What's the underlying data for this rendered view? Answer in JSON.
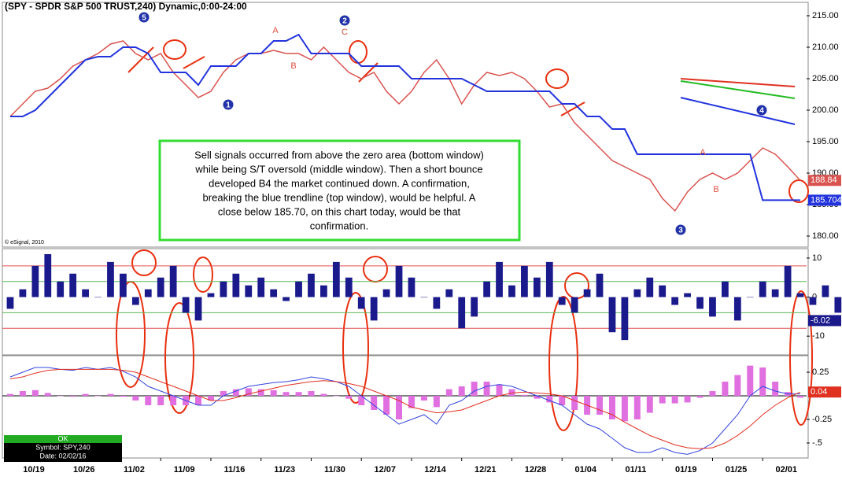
{
  "title": "(SPY - SPDR S&P 500 TRUST,240) Dynamic,0:00-24:00",
  "copyright": "© eSignal, 2010",
  "annotation": [
    "Sell signals occurred from above the zero area (bottom window)",
    "while being S/T oversold (middle window).  Then a short bounce",
    "developed B4 the market continued down.  A confirmation,",
    "breaking the blue trendline (top window), would be helpful. A",
    "close below 185.70, on this chart today, would be that",
    "confirmation."
  ],
  "status": {
    "state": "OK",
    "symbol": "Symbol: SPY,240",
    "date": "Date: 02/02/16"
  },
  "wave_labels": [
    "5",
    "1",
    "2",
    "4",
    "3",
    "A",
    "C",
    "B",
    "A",
    "B"
  ],
  "chart_data": [
    {
      "type": "line",
      "ylim": [
        178.5,
        216.5
      ],
      "yticks": [
        {
          "value": 215,
          "label": "215.00"
        },
        {
          "value": 210,
          "label": "210.00"
        },
        {
          "value": 205,
          "label": "205.00"
        },
        {
          "value": 200,
          "label": "200.00"
        },
        {
          "value": 195,
          "label": "195.00"
        },
        {
          "value": 190,
          "label": "190.00"
        },
        {
          "value": 185,
          "label": "185.00"
        },
        {
          "value": 180,
          "label": "180.00"
        }
      ],
      "series": [
        {
          "color": "#d9534f",
          "values": [
            199,
            201,
            203,
            203.5,
            205,
            207,
            208,
            209,
            210.5,
            211,
            209,
            208,
            209,
            206,
            204,
            202,
            203,
            206,
            208,
            209,
            209,
            209.5,
            209,
            209,
            208,
            210,
            208,
            206,
            205,
            206,
            203,
            201,
            203,
            206,
            208,
            205,
            201,
            204,
            206,
            205.5,
            206,
            205,
            203,
            200.5,
            201,
            198,
            196,
            194,
            192,
            191,
            190,
            189,
            186,
            184,
            187,
            189,
            190,
            189,
            190,
            192,
            194,
            193,
            191,
            188.84
          ]
        },
        {
          "color": "#2233dd",
          "values": [
            199,
            199,
            200,
            202,
            204,
            206,
            208,
            208.5,
            208.5,
            210,
            210,
            209,
            206,
            206,
            206,
            204,
            207,
            207,
            207,
            209,
            209,
            211,
            211,
            212,
            209,
            209,
            209,
            209,
            207,
            207,
            207,
            207,
            205,
            205,
            205,
            205,
            205,
            204,
            203,
            203,
            203,
            203,
            203,
            203,
            201,
            201,
            199,
            199,
            197,
            197,
            193,
            193,
            193,
            193,
            193,
            193,
            193,
            193,
            193,
            193,
            185.704,
            185.704,
            185.704,
            185.704
          ]
        }
      ]
    },
    {
      "type": "bar",
      "ylim": [
        -14.6,
        12
      ],
      "yticks": [
        10,
        0,
        -10
      ],
      "color": "#1a1a8c",
      "levels": [
        {
          "value": 8,
          "color": "#e05050"
        },
        {
          "value": 4,
          "color": "#5cb85c"
        },
        {
          "value": -4,
          "color": "#5cb85c"
        },
        {
          "value": -8,
          "color": "#e05050"
        }
      ],
      "values": [
        -3,
        2,
        8,
        11,
        4,
        6,
        2,
        0,
        9,
        6,
        -2,
        2,
        5,
        8,
        -4,
        -6,
        1,
        4,
        6,
        3,
        5,
        2,
        -1,
        4,
        6,
        3,
        9,
        5,
        -3,
        -6,
        2,
        8,
        5,
        0,
        -3,
        2,
        -8,
        -5,
        4,
        9,
        3,
        8,
        5,
        9,
        -2,
        -4,
        2,
        6,
        -9,
        -11,
        2,
        5,
        3,
        -2,
        1,
        -3,
        -5,
        4,
        -6,
        0,
        4,
        2,
        8,
        1,
        -2,
        3,
        -4,
        -6.02
      ]
    },
    {
      "type": "combo",
      "ylim": [
        -0.642,
        0.417
      ],
      "yticks": [
        0.25,
        -0.25,
        {
          "value": -0.5,
          "label": "-.5"
        }
      ],
      "categories": [
        "10/19",
        null,
        null,
        null,
        "10/26",
        null,
        null,
        null,
        "11/02",
        null,
        null,
        null,
        "11/09",
        null,
        null,
        null,
        "11/16",
        null,
        null,
        null,
        "11/23",
        null,
        null,
        null,
        "11/30",
        null,
        null,
        null,
        "12/07",
        null,
        null,
        null,
        "12/14",
        null,
        null,
        null,
        "12/21",
        null,
        null,
        null,
        "12/28",
        null,
        null,
        null,
        "01/04",
        null,
        null,
        null,
        "01/11",
        null,
        null,
        null,
        "01/19",
        null,
        null,
        null,
        "01/25",
        null,
        null,
        null,
        "02/01",
        null,
        null,
        null
      ],
      "series": [
        {
          "type": "bar",
          "color": "#e070e0",
          "values": [
            0.02,
            0.05,
            0.06,
            0.03,
            0,
            -0.01,
            0.02,
            0,
            0.02,
            -0.01,
            -0.05,
            -0.1,
            -0.1,
            -0.1,
            -0.1,
            -0.1,
            -0.05,
            0.05,
            0.07,
            0.08,
            0.07,
            0.06,
            0.04,
            0.04,
            0.05,
            0.02,
            0,
            -0.03,
            -0.1,
            -0.15,
            -0.2,
            -0.25,
            -0.13,
            -0.05,
            -0.12,
            0.07,
            0.1,
            0.15,
            0.15,
            0.12,
            0.07,
            0.01,
            -0.03,
            -0.07,
            -0.1,
            -0.15,
            -0.2,
            -0.2,
            -0.25,
            -0.27,
            -0.25,
            -0.18,
            -0.08,
            -0.08,
            -0.07,
            -0.02,
            0.05,
            0.15,
            0.22,
            0.32,
            0.3,
            0.15,
            0.04,
            -0.02
          ]
        },
        {
          "type": "line",
          "color": "#3344dd",
          "values": [
            0.2,
            0.25,
            0.3,
            0.3,
            0.28,
            0.27,
            0.3,
            0.28,
            0.3,
            0.26,
            0.2,
            0.1,
            0.05,
            0,
            -0.05,
            -0.1,
            -0.1,
            0,
            0.05,
            0.1,
            0.12,
            0.14,
            0.15,
            0.17,
            0.2,
            0.18,
            0.15,
            0.1,
            0,
            -0.1,
            -0.2,
            -0.3,
            -0.25,
            -0.2,
            -0.3,
            -0.1,
            -0.05,
            0.05,
            0.1,
            0.12,
            0.1,
            0.05,
            0,
            -0.05,
            -0.1,
            -0.2,
            -0.3,
            -0.35,
            -0.45,
            -0.55,
            -0.6,
            -0.6,
            -0.55,
            -0.6,
            -0.62,
            -0.58,
            -0.5,
            -0.35,
            -0.2,
            0,
            0.1,
            0.05,
            0.02,
            0.02
          ]
        },
        {
          "type": "line",
          "color": "#e03020",
          "values": [
            0.18,
            0.2,
            0.24,
            0.27,
            0.28,
            0.28,
            0.28,
            0.28,
            0.28,
            0.27,
            0.25,
            0.2,
            0.15,
            0.1,
            0.05,
            0,
            -0.05,
            -0.05,
            -0.02,
            0.02,
            0.05,
            0.08,
            0.11,
            0.13,
            0.15,
            0.16,
            0.15,
            0.13,
            0.1,
            0.05,
            0,
            -0.05,
            -0.12,
            -0.15,
            -0.18,
            -0.17,
            -0.15,
            -0.1,
            -0.05,
            0,
            0.03,
            0.04,
            0.03,
            0.02,
            0,
            -0.05,
            -0.1,
            -0.15,
            -0.2,
            -0.28,
            -0.35,
            -0.42,
            -0.47,
            -0.52,
            -0.55,
            -0.56,
            -0.55,
            -0.5,
            -0.42,
            -0.32,
            -0.2,
            -0.1,
            -0.02,
            0.04
          ]
        }
      ]
    }
  ]
}
